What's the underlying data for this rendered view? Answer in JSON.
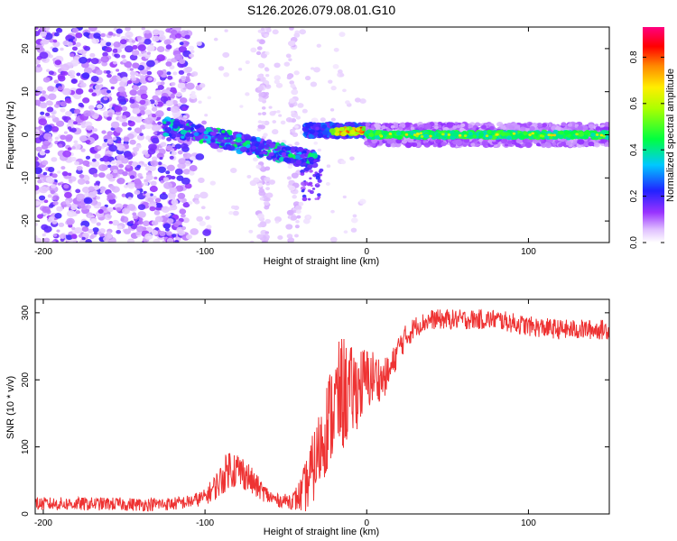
{
  "figure_title": "S126.2026.079.08.01.G10",
  "chart_data": [
    {
      "type": "heatmap",
      "xlabel": "Height of straight line (km)",
      "ylabel": "Frequency (Hz)",
      "xlim": [
        -205,
        150
      ],
      "ylim": [
        -25,
        25
      ],
      "xticks": [
        -200,
        -100,
        0,
        100
      ],
      "yticks": [
        -20,
        -10,
        0,
        10,
        20
      ],
      "grid": false,
      "colorbar": {
        "label": "Normalized spectral amplitude",
        "range": [
          0.0,
          0.93
        ],
        "ticks": [
          "0.0",
          "0.2",
          "0.4",
          "0.6",
          "0.8"
        ],
        "colormap": "rainbow (white-violet-blue-cyan-green-yellow-red-magenta)"
      },
      "features": [
        {
          "x_range": [
            -205,
            -110
          ],
          "description": "diffuse scattered noise across full frequency range",
          "amplitude": 0.1
        },
        {
          "x_range": [
            -125,
            -30
          ],
          "freq_center": [
            2,
            -6
          ],
          "description": "descending carrier trace",
          "amplitude": 0.35
        },
        {
          "x_range": [
            -30,
            0
          ],
          "freq_center": [
            0.5,
            1.5
          ],
          "description": "carrier acquisition",
          "amplitude": 0.7
        },
        {
          "x_range": [
            0,
            150
          ],
          "freq_center": [
            0,
            0
          ],
          "description": "steady carrier line",
          "amplitude": 0.45
        }
      ]
    },
    {
      "type": "line",
      "xlabel": "Height of straight line (km)",
      "ylabel": "SNR (10 * v/v)",
      "xlim": [
        -205,
        150
      ],
      "ylim": [
        0,
        320
      ],
      "xticks": [
        -200,
        -100,
        0,
        100
      ],
      "yticks": [
        0,
        100,
        200,
        300
      ],
      "grid": false,
      "series": [
        {
          "name": "SNR",
          "color": "#ee3333",
          "x": [
            -205,
            -180,
            -160,
            -140,
            -120,
            -110,
            -100,
            -90,
            -85,
            -80,
            -75,
            -70,
            -65,
            -60,
            -55,
            -50,
            -45,
            -40,
            -35,
            -30,
            -25,
            -20,
            -15,
            -10,
            -5,
            0,
            5,
            10,
            15,
            20,
            25,
            30,
            40,
            60,
            80,
            100,
            120,
            150
          ],
          "values": [
            15,
            15,
            15,
            14,
            15,
            18,
            25,
            50,
            70,
            65,
            60,
            45,
            35,
            25,
            20,
            20,
            20,
            30,
            55,
            90,
            130,
            160,
            180,
            180,
            190,
            200,
            205,
            200,
            215,
            250,
            265,
            280,
            290,
            290,
            290,
            280,
            275,
            275
          ],
          "noise_amplitude": [
            10,
            10,
            10,
            10,
            10,
            10,
            12,
            25,
            30,
            30,
            25,
            20,
            15,
            12,
            10,
            10,
            15,
            30,
            50,
            60,
            70,
            80,
            90,
            70,
            60,
            50,
            40,
            30,
            25,
            20,
            20,
            15,
            15,
            15,
            15,
            15,
            15,
            15
          ]
        }
      ]
    }
  ]
}
